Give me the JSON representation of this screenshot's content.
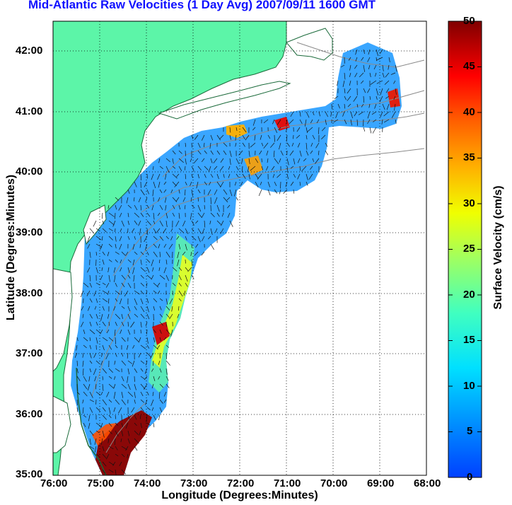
{
  "title": "Mid-Atlantic Raw Velocities (1 Day Avg) 2007/09/11 1600 GMT",
  "x_axis": {
    "label": "Longitude (Degrees:Minutes)",
    "ticks": [
      "76:00",
      "75:00",
      "74:00",
      "73:00",
      "72:00",
      "71:00",
      "70:00",
      "69:00",
      "68:00"
    ]
  },
  "y_axis": {
    "label": "Latitude (Degrees:Minutes)",
    "ticks": [
      "42:00",
      "41:00",
      "40:00",
      "39:00",
      "38:00",
      "37:00",
      "36:00",
      "35:00"
    ]
  },
  "colorbar": {
    "label": "Surface Velocity (cm/s)",
    "ticks": [
      "50",
      "45",
      "40",
      "35",
      "30",
      "25",
      "20",
      "15",
      "10",
      "5",
      "0"
    ],
    "min": 0,
    "max": 50
  },
  "colors": {
    "land": "#5cf5a8",
    "title": "#1010ff",
    "coast_line": "#1a6a3a",
    "bathymetry": "#8a8a8a"
  }
}
